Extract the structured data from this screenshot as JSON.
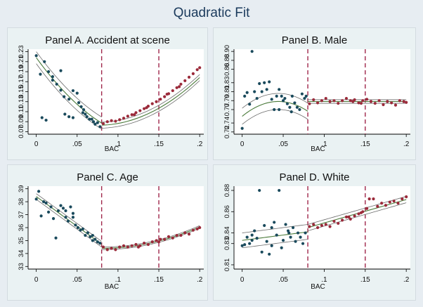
{
  "figure": {
    "title": "Quadratic Fit"
  },
  "colors": {
    "left": "#1a4a5c",
    "right": "#9b2a3a",
    "fit": "#4a7a3a",
    "ci": "#6b6b6b",
    "cutoff": "#a0284c"
  },
  "chart_data": [
    {
      "type": "scatter",
      "title": "Panel A. Accident at scene",
      "xlabel": "BAC",
      "xlim": [
        -0.01,
        0.205
      ],
      "ylim": [
        0.065,
        0.235
      ],
      "xticks": [
        0,
        0.05,
        0.1,
        0.15,
        0.2
      ],
      "xtick_labels": [
        "0",
        ".05",
        ".1",
        ".15",
        ".2"
      ],
      "yticks": [
        0.07,
        0.09,
        0.11,
        0.13,
        0.15,
        0.17,
        0.19,
        0.21,
        0.23
      ],
      "ytick_labels": [
        "0.07",
        "0.09",
        "0.11",
        "0.13",
        "0.15",
        "0.17",
        "0.19",
        "0.21",
        "0.23"
      ],
      "cutoffs": [
        0.08,
        0.15
      ],
      "left_points": [
        [
          0,
          0.222
        ],
        [
          0.005,
          0.185
        ],
        [
          0.01,
          0.21
        ],
        [
          0.015,
          0.19
        ],
        [
          0.02,
          0.18
        ],
        [
          0.03,
          0.192
        ],
        [
          0.007,
          0.098
        ],
        [
          0.012,
          0.093
        ],
        [
          0.02,
          0.173
        ],
        [
          0.025,
          0.165
        ],
        [
          0.03,
          0.153
        ],
        [
          0.034,
          0.14
        ],
        [
          0.04,
          0.135
        ],
        [
          0.045,
          0.152
        ],
        [
          0.05,
          0.147
        ],
        [
          0.052,
          0.128
        ],
        [
          0.055,
          0.12
        ],
        [
          0.058,
          0.114
        ],
        [
          0.06,
          0.105
        ],
        [
          0.065,
          0.095
        ],
        [
          0.07,
          0.09
        ],
        [
          0.075,
          0.088
        ],
        [
          0.035,
          0.105
        ],
        [
          0.04,
          0.1
        ],
        [
          0.045,
          0.098
        ],
        [
          0.062,
          0.1
        ],
        [
          0.068,
          0.095
        ],
        [
          0.072,
          0.085
        ],
        [
          0.078,
          0.08
        ],
        [
          0.057,
          0.108
        ]
      ],
      "right_points": [
        [
          0.082,
          0.086
        ],
        [
          0.087,
          0.09
        ],
        [
          0.092,
          0.092
        ],
        [
          0.097,
          0.091
        ],
        [
          0.102,
          0.094
        ],
        [
          0.107,
          0.097
        ],
        [
          0.112,
          0.101
        ],
        [
          0.117,
          0.104
        ],
        [
          0.122,
          0.108
        ],
        [
          0.127,
          0.112
        ],
        [
          0.132,
          0.116
        ],
        [
          0.137,
          0.121
        ],
        [
          0.142,
          0.126
        ],
        [
          0.147,
          0.13
        ],
        [
          0.152,
          0.135
        ],
        [
          0.157,
          0.14
        ],
        [
          0.162,
          0.146
        ],
        [
          0.167,
          0.152
        ],
        [
          0.172,
          0.158
        ],
        [
          0.177,
          0.165
        ],
        [
          0.182,
          0.172
        ],
        [
          0.187,
          0.179
        ],
        [
          0.192,
          0.186
        ],
        [
          0.197,
          0.194
        ],
        [
          0.2,
          0.198
        ],
        [
          0.12,
          0.104
        ],
        [
          0.135,
          0.118
        ],
        [
          0.16,
          0.145
        ],
        [
          0.175,
          0.16
        ]
      ],
      "fit_left": {
        "x0": 0,
        "x1": 0.08,
        "a": 0.218,
        "b": -2.25,
        "c": 7.7,
        "band": 0.012
      },
      "fit_right": {
        "x0": 0.08,
        "x1": 0.2,
        "a": 0.083,
        "b": 0.05,
        "c": 6.2,
        "band": 0.006
      }
    },
    {
      "type": "scatter",
      "title": "Panel B. Male",
      "xlabel": "BAC",
      "xlim": [
        -0.01,
        0.205
      ],
      "ylim": [
        0.715,
        0.905
      ],
      "xticks": [
        0,
        0.05,
        0.1,
        0.15,
        0.2
      ],
      "xtick_labels": [
        "0",
        ".05",
        ".1",
        ".15",
        ".2"
      ],
      "yticks": [
        0.72,
        0.74,
        0.77,
        0.79,
        0.81,
        0.83,
        0.86,
        0.88,
        0.9
      ],
      "ytick_labels": [
        "0.72",
        "0.74",
        "0.77",
        "0.79",
        "0.81",
        "0.83",
        "0.86",
        "0.88",
        "0.90"
      ],
      "cutoffs": [
        0.08,
        0.15
      ],
      "left_points": [
        [
          0,
          0.728
        ],
        [
          0.003,
          0.8
        ],
        [
          0.006,
          0.808
        ],
        [
          0.009,
          0.782
        ],
        [
          0.012,
          0.9
        ],
        [
          0.015,
          0.81
        ],
        [
          0.018,
          0.795
        ],
        [
          0.021,
          0.828
        ],
        [
          0.024,
          0.81
        ],
        [
          0.027,
          0.83
        ],
        [
          0.03,
          0.815
        ],
        [
          0.033,
          0.832
        ],
        [
          0.036,
          0.793
        ],
        [
          0.039,
          0.77
        ],
        [
          0.042,
          0.8
        ],
        [
          0.045,
          0.815
        ],
        [
          0.048,
          0.8
        ],
        [
          0.05,
          0.79
        ],
        [
          0.052,
          0.795
        ],
        [
          0.055,
          0.783
        ],
        [
          0.058,
          0.775
        ],
        [
          0.061,
          0.8
        ],
        [
          0.064,
          0.785
        ],
        [
          0.067,
          0.775
        ],
        [
          0.07,
          0.77
        ],
        [
          0.073,
          0.805
        ],
        [
          0.076,
          0.795
        ],
        [
          0.078,
          0.8
        ],
        [
          0.045,
          0.77
        ],
        [
          0.06,
          0.765
        ]
      ],
      "right_points": [
        [
          0.082,
          0.783
        ],
        [
          0.087,
          0.792
        ],
        [
          0.092,
          0.785
        ],
        [
          0.097,
          0.79
        ],
        [
          0.102,
          0.795
        ],
        [
          0.107,
          0.788
        ],
        [
          0.112,
          0.79
        ],
        [
          0.117,
          0.784
        ],
        [
          0.122,
          0.79
        ],
        [
          0.127,
          0.795
        ],
        [
          0.132,
          0.79
        ],
        [
          0.137,
          0.792
        ],
        [
          0.142,
          0.785
        ],
        [
          0.147,
          0.79
        ],
        [
          0.152,
          0.793
        ],
        [
          0.157,
          0.788
        ],
        [
          0.162,
          0.784
        ],
        [
          0.167,
          0.79
        ],
        [
          0.172,
          0.781
        ],
        [
          0.177,
          0.788
        ],
        [
          0.182,
          0.785
        ],
        [
          0.187,
          0.78
        ],
        [
          0.192,
          0.79
        ],
        [
          0.197,
          0.788
        ],
        [
          0.2,
          0.786
        ],
        [
          0.135,
          0.788
        ],
        [
          0.145,
          0.784
        ]
      ],
      "fit_left": {
        "x0": 0,
        "x1": 0.08,
        "a": 0.755,
        "b": 1.5,
        "c": -17,
        "band": 0.018
      },
      "fit_right": {
        "x0": 0.08,
        "x1": 0.2,
        "a": 0.788,
        "b": 0,
        "c": 0,
        "band": 0.004
      }
    },
    {
      "type": "scatter",
      "title": "Panel C. Age",
      "xlabel": "BAC",
      "xlim": [
        -0.01,
        0.205
      ],
      "ylim": [
        32.8,
        39.2
      ],
      "xticks": [
        0,
        0.05,
        0.1,
        0.15,
        0.2
      ],
      "xtick_labels": [
        "0",
        ".05",
        ".1",
        ".15",
        ".2"
      ],
      "yticks": [
        33,
        34,
        35,
        36,
        37,
        38,
        39
      ],
      "ytick_labels": [
        "33",
        "34",
        "35",
        "36",
        "37",
        "38",
        "39"
      ],
      "cutoffs": [
        0.08,
        0.15
      ],
      "left_points": [
        [
          0,
          38.2
        ],
        [
          0.003,
          38.8
        ],
        [
          0.006,
          36.9
        ],
        [
          0.009,
          38
        ],
        [
          0.012,
          37.9
        ],
        [
          0.015,
          37.2
        ],
        [
          0.018,
          37.6
        ],
        [
          0.021,
          36.7
        ],
        [
          0.024,
          35.2
        ],
        [
          0.027,
          37.3
        ],
        [
          0.03,
          37.7
        ],
        [
          0.033,
          37.5
        ],
        [
          0.036,
          36.8
        ],
        [
          0.039,
          36.5
        ],
        [
          0.042,
          37.6
        ],
        [
          0.045,
          36.8
        ],
        [
          0.048,
          36.2
        ],
        [
          0.051,
          36
        ],
        [
          0.054,
          35.8
        ],
        [
          0.057,
          35.9
        ],
        [
          0.06,
          35.4
        ],
        [
          0.063,
          35.6
        ],
        [
          0.066,
          35.3
        ],
        [
          0.069,
          35.4
        ],
        [
          0.072,
          35.1
        ],
        [
          0.075,
          34.9
        ],
        [
          0.078,
          34.8
        ],
        [
          0.036,
          37.3
        ],
        [
          0.045,
          37.1
        ],
        [
          0.069,
          35
        ]
      ],
      "right_points": [
        [
          0.082,
          34.5
        ],
        [
          0.087,
          34.3
        ],
        [
          0.092,
          34.4
        ],
        [
          0.097,
          34.3
        ],
        [
          0.102,
          34.5
        ],
        [
          0.107,
          34.6
        ],
        [
          0.112,
          34.5
        ],
        [
          0.117,
          34.6
        ],
        [
          0.122,
          34.7
        ],
        [
          0.127,
          34.6
        ],
        [
          0.132,
          34.8
        ],
        [
          0.137,
          34.7
        ],
        [
          0.142,
          34.9
        ],
        [
          0.147,
          35
        ],
        [
          0.152,
          35.1
        ],
        [
          0.157,
          35.1
        ],
        [
          0.162,
          35.3
        ],
        [
          0.167,
          35.2
        ],
        [
          0.172,
          35.4
        ],
        [
          0.177,
          35.4
        ],
        [
          0.182,
          35.6
        ],
        [
          0.187,
          35.5
        ],
        [
          0.192,
          35.8
        ],
        [
          0.197,
          35.9
        ],
        [
          0.2,
          36
        ],
        [
          0.125,
          34.5
        ],
        [
          0.15,
          34.9
        ]
      ],
      "fit_left": {
        "x0": 0,
        "x1": 0.08,
        "a": 38.4,
        "b": -46,
        "c": 0,
        "band": 0.22
      },
      "fit_right": {
        "x0": 0.08,
        "x1": 0.2,
        "a": 34.4,
        "b": 0,
        "c": 115,
        "band": 0.1
      }
    },
    {
      "type": "scatter",
      "title": "Panel D. White",
      "xlabel": "BAC",
      "xlim": [
        -0.01,
        0.205
      ],
      "ylim": [
        0.806,
        0.884
      ],
      "xticks": [
        0,
        0.05,
        0.1,
        0.15,
        0.2
      ],
      "xtick_labels": [
        "0",
        ".05",
        ".1",
        ".15",
        ".2"
      ],
      "yticks": [
        0.81,
        0.83,
        0.84,
        0.86,
        0.88
      ],
      "ytick_labels": [
        "0.81",
        "0.83",
        "0.84",
        "0.86",
        "0.88"
      ],
      "cutoffs": [
        0.08,
        0.15
      ],
      "left_points": [
        [
          0,
          0.828
        ],
        [
          0.003,
          0.829
        ],
        [
          0.006,
          0.836
        ],
        [
          0.009,
          0.83
        ],
        [
          0.012,
          0.833
        ],
        [
          0.015,
          0.842
        ],
        [
          0.018,
          0.835
        ],
        [
          0.021,
          0.88
        ],
        [
          0.024,
          0.822
        ],
        [
          0.027,
          0.847
        ],
        [
          0.03,
          0.832
        ],
        [
          0.033,
          0.82
        ],
        [
          0.036,
          0.845
        ],
        [
          0.039,
          0.85
        ],
        [
          0.042,
          0.838
        ],
        [
          0.045,
          0.88
        ],
        [
          0.048,
          0.826
        ],
        [
          0.05,
          0.833
        ],
        [
          0.053,
          0.848
        ],
        [
          0.056,
          0.842
        ],
        [
          0.059,
          0.836
        ],
        [
          0.062,
          0.845
        ],
        [
          0.065,
          0.832
        ],
        [
          0.068,
          0.84
        ],
        [
          0.071,
          0.836
        ],
        [
          0.074,
          0.83
        ],
        [
          0.077,
          0.84
        ],
        [
          0.036,
          0.828
        ],
        [
          0.057,
          0.84
        ],
        [
          0.012,
          0.838
        ]
      ],
      "right_points": [
        [
          0.082,
          0.846
        ],
        [
          0.087,
          0.848
        ],
        [
          0.092,
          0.845
        ],
        [
          0.097,
          0.847
        ],
        [
          0.102,
          0.848
        ],
        [
          0.107,
          0.846
        ],
        [
          0.112,
          0.851
        ],
        [
          0.117,
          0.849
        ],
        [
          0.122,
          0.852
        ],
        [
          0.127,
          0.855
        ],
        [
          0.132,
          0.853
        ],
        [
          0.137,
          0.856
        ],
        [
          0.142,
          0.858
        ],
        [
          0.147,
          0.86
        ],
        [
          0.152,
          0.863
        ],
        [
          0.155,
          0.872
        ],
        [
          0.16,
          0.872
        ],
        [
          0.165,
          0.865
        ],
        [
          0.17,
          0.868
        ],
        [
          0.175,
          0.866
        ],
        [
          0.18,
          0.869
        ],
        [
          0.185,
          0.87
        ],
        [
          0.19,
          0.868
        ],
        [
          0.195,
          0.872
        ],
        [
          0.2,
          0.874
        ],
        [
          0.13,
          0.855
        ],
        [
          0.145,
          0.859
        ]
      ],
      "fit_left": {
        "x0": 0,
        "x1": 0.08,
        "a": 0.833,
        "b": 0.1,
        "c": 0,
        "band": 0.007
      },
      "fit_right": {
        "x0": 0.08,
        "x1": 0.2,
        "a": 0.845,
        "b": 0.22,
        "c": 0,
        "band": 0.003
      }
    }
  ]
}
